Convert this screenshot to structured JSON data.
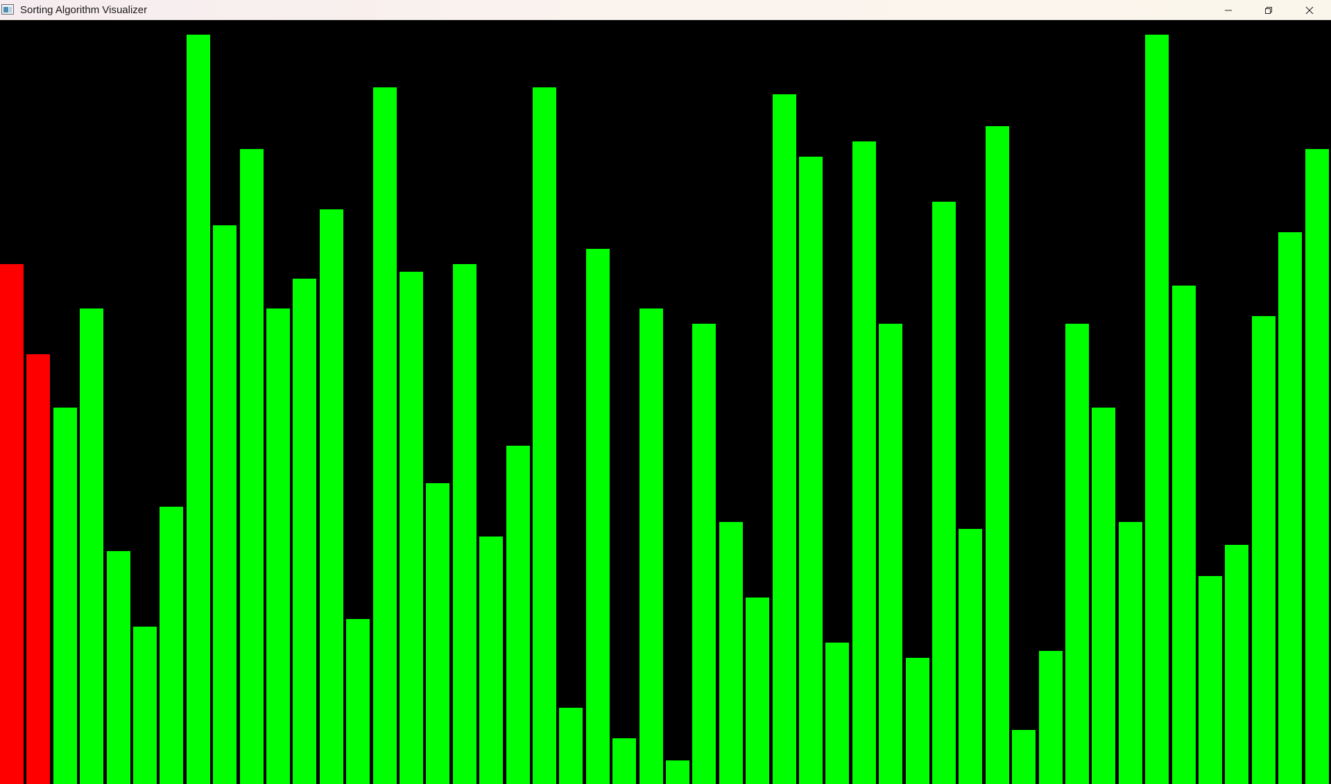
{
  "window": {
    "title": "Sorting Algorithm Visualizer",
    "controls": {
      "minimize_icon": "minimize-icon",
      "maximize_icon": "restore-icon",
      "close_icon": "close-icon"
    }
  },
  "colors": {
    "background": "#000000",
    "bar_default": "#00ff00",
    "bar_active": "#ff0000"
  },
  "chart_data": {
    "type": "bar",
    "value_max": 100,
    "active_indices": [
      0,
      1
    ],
    "values": [
      68.7,
      56.8,
      49.7,
      62.8,
      30.8,
      20.8,
      36.6,
      99.0,
      73.8,
      83.9,
      62.8,
      66.8,
      75.9,
      21.8,
      92.0,
      67.7,
      39.7,
      68.7,
      32.7,
      44.7,
      92.0,
      10.1,
      70.7,
      6.0,
      62.8,
      3.1,
      60.8,
      34.6,
      24.6,
      91.1,
      82.9,
      18.7,
      84.9,
      60.8,
      16.7,
      76.9,
      33.7,
      86.9,
      7.1,
      17.6,
      60.8,
      49.7,
      34.6,
      99.0,
      65.8,
      27.5,
      31.6,
      61.8,
      72.9,
      83.9
    ]
  }
}
